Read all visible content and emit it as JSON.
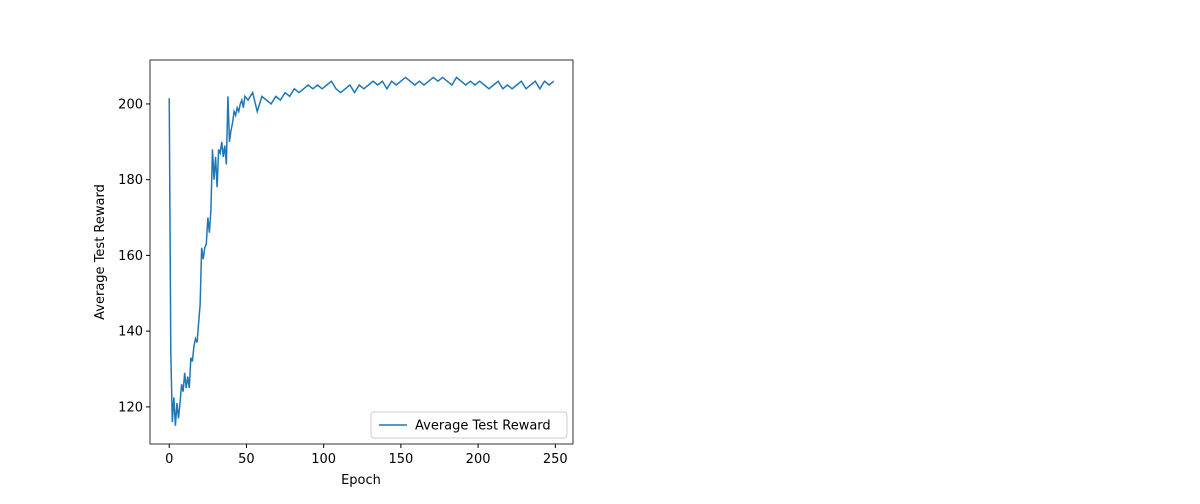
{
  "chart_data": {
    "type": "line",
    "xlabel": "Epoch",
    "ylabel": "Average Test Reward",
    "x": [
      0,
      1,
      2,
      3,
      4,
      5,
      6,
      7,
      8,
      9,
      10,
      11,
      12,
      13,
      14,
      15,
      16,
      17,
      18,
      19,
      20,
      21,
      22,
      23,
      24,
      25,
      26,
      27,
      28,
      29,
      30,
      31,
      32,
      33,
      34,
      35,
      36,
      37,
      38,
      39,
      40,
      41,
      42,
      43,
      44,
      45,
      46,
      47,
      48,
      49,
      51,
      54,
      57,
      60,
      63,
      66,
      69,
      72,
      75,
      78,
      81,
      84,
      87,
      90,
      93,
      96,
      99,
      102,
      105,
      108,
      111,
      114,
      117,
      120,
      123,
      126,
      129,
      132,
      135,
      138,
      141,
      144,
      147,
      150,
      153,
      156,
      159,
      162,
      165,
      168,
      171,
      174,
      177,
      180,
      183,
      186,
      189,
      192,
      195,
      198,
      201,
      204,
      207,
      210,
      213,
      216,
      219,
      222,
      225,
      228,
      231,
      234,
      237,
      240,
      243,
      246,
      249
    ],
    "series": [
      {
        "name": "Average Test Reward",
        "color": "#1f77b4",
        "values": [
          201.5,
          135,
          116,
          122.5,
          115,
          121,
          117,
          121,
          126,
          124,
          129,
          125,
          128,
          125,
          133,
          132,
          136,
          138,
          137,
          142,
          147,
          162,
          159,
          162,
          163,
          170,
          166,
          172,
          188,
          180,
          186,
          178,
          188,
          187,
          190,
          186,
          189,
          184,
          202,
          190,
          193,
          195,
          198,
          197,
          199,
          198,
          200,
          201,
          199,
          202,
          201,
          203,
          198,
          202,
          201,
          200,
          202,
          201,
          203,
          202,
          204,
          203,
          204,
          205,
          204,
          205,
          204,
          205,
          206,
          204,
          203,
          204,
          205,
          203,
          205,
          204,
          205,
          206,
          205,
          206,
          204,
          206,
          205,
          206,
          207,
          206,
          205,
          206,
          205,
          206,
          207,
          206,
          207,
          206,
          205,
          207,
          206,
          205,
          206,
          205,
          206,
          205,
          204,
          205,
          206,
          204,
          205,
          204,
          205,
          206,
          204,
          205,
          206,
          204,
          206,
          205,
          206
        ]
      }
    ],
    "xlim": [
      -12.45,
      261.45
    ],
    "ylim": [
      110.2,
      211.6
    ],
    "xticks": [
      0,
      50,
      100,
      150,
      200,
      250
    ],
    "yticks": [
      120,
      140,
      160,
      180,
      200
    ],
    "legend": "lower right"
  }
}
